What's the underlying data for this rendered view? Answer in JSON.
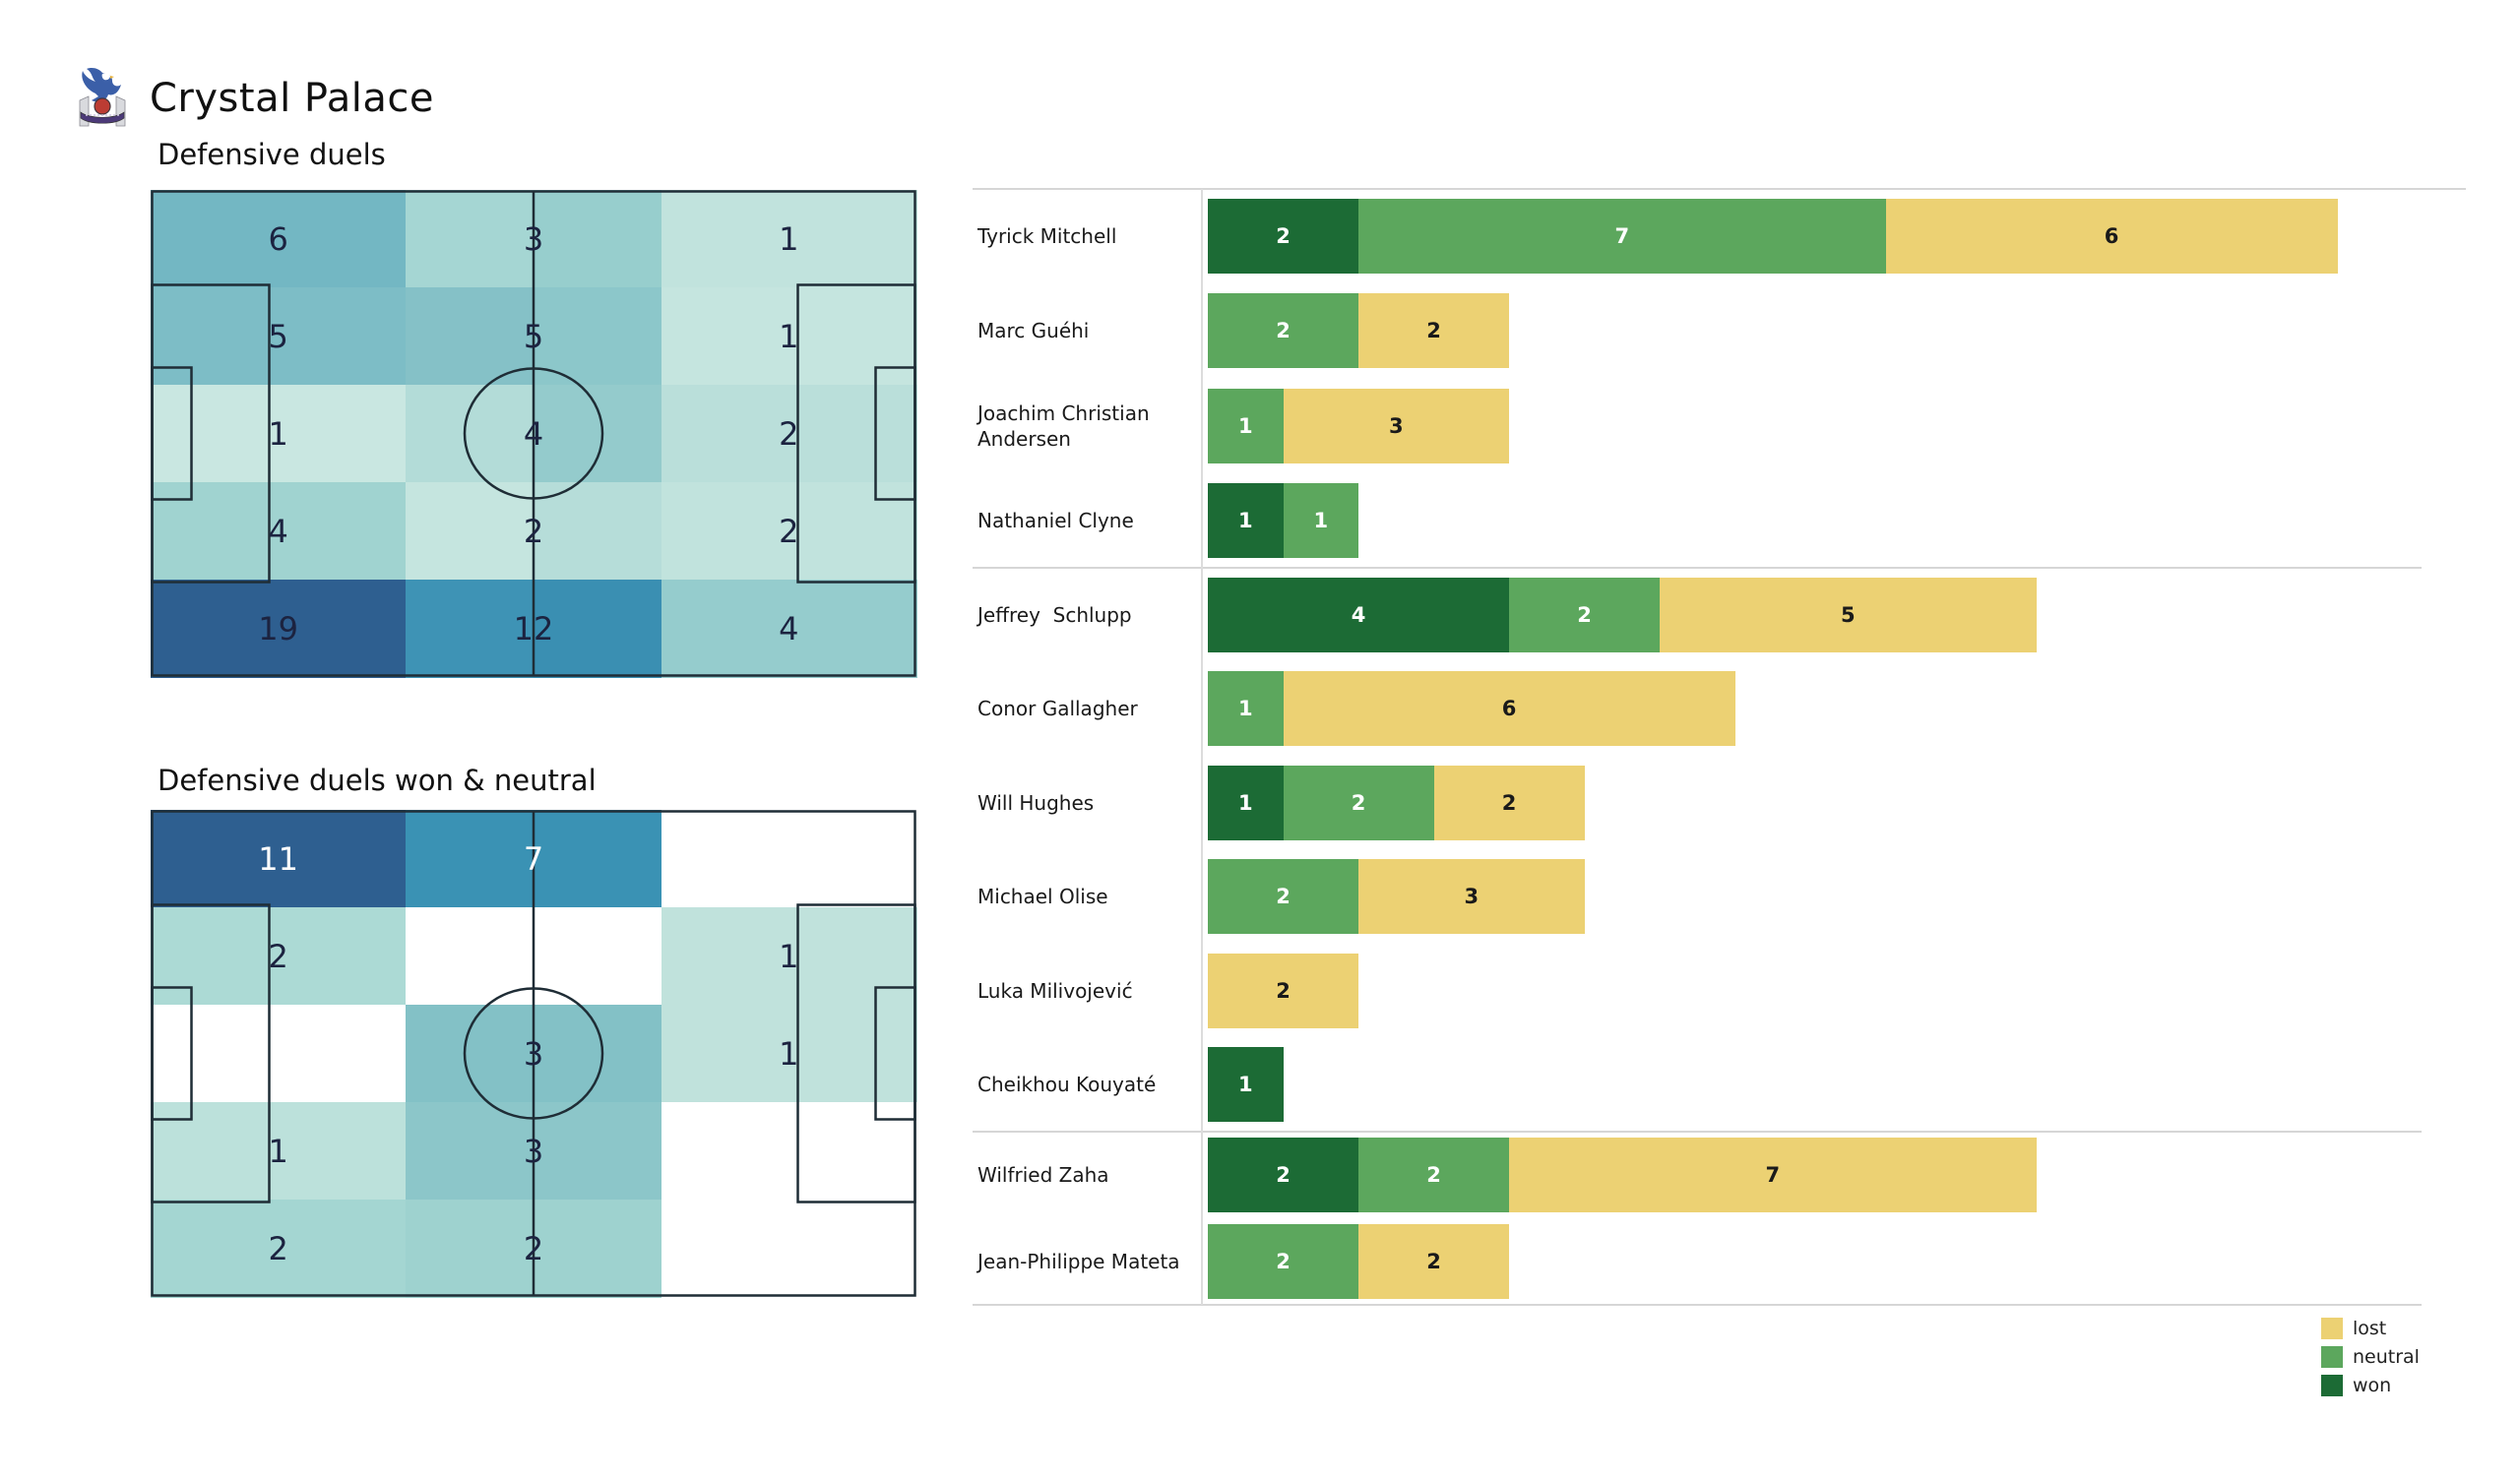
{
  "header": {
    "club_name": "Crystal Palace"
  },
  "colors": {
    "won": "#1c6b35",
    "neutral": "#5ca75d",
    "lost": "#ecd173",
    "segment_text": {
      "won": "#ffffff",
      "neutral": "#ffffff",
      "lost": "#1a1a1a"
    },
    "pitch_label_dark": "#1c2340",
    "pitch_label_light": "#ffffff"
  },
  "pitch1": {
    "title": "Defensive duels",
    "values": [
      [
        "6",
        "3",
        "1"
      ],
      [
        "5",
        "5",
        "1"
      ],
      [
        "1",
        "4",
        "2"
      ],
      [
        "4",
        "2",
        "2"
      ],
      [
        "19",
        "12",
        "4"
      ]
    ],
    "value_styles": [
      [
        "dark",
        "dark",
        "dark"
      ],
      [
        "dark",
        "dark",
        "dark"
      ],
      [
        "dark",
        "dark",
        "dark"
      ],
      [
        "dark",
        "dark",
        "dark"
      ],
      [
        "dark",
        "dark",
        "dark"
      ]
    ],
    "cell_colors": [
      [
        "#73b7c3",
        "#73b7c3",
        "#a5d6d3",
        "#97cecd",
        "#c1e3dd",
        "#c1e3dd"
      ],
      [
        "#7dbdc6",
        "#7dbdc6",
        "#85c1c7",
        "#8cc7ca",
        "#c5e5df",
        "#c5e5df"
      ],
      [
        "#c9e7e1",
        "#c9e7e1",
        "#b3dcd8",
        "#94cbcc",
        "#badfda",
        "#badfda"
      ],
      [
        "#a0d3d0",
        "#a0d3d0",
        "#c5e5df",
        "#b6ddd9",
        "#c1e3dd",
        "#c1e3dd"
      ],
      [
        "#2e5f90",
        "#2e5f90",
        "#3e93b5",
        "#3a8fb2",
        "#95cccd",
        "#95cccd"
      ]
    ]
  },
  "pitch2": {
    "title": "Defensive duels won & neutral",
    "values": [
      [
        "11",
        "7",
        ""
      ],
      [
        "2",
        "",
        "1"
      ],
      [
        "",
        "3",
        "1"
      ],
      [
        "1",
        "3",
        ""
      ],
      [
        "2",
        "2",
        ""
      ]
    ],
    "value_styles": [
      [
        "light",
        "light",
        ""
      ],
      [
        "dark",
        "",
        "dark"
      ],
      [
        "",
        "dark",
        "dark"
      ],
      [
        "dark",
        "dark",
        ""
      ],
      [
        "dark",
        "dark",
        ""
      ]
    ],
    "cell_colors": [
      [
        "#2e5f90",
        "#2e5f90",
        "#3a92b4",
        "#3a92b4",
        "#ffffff",
        "#ffffff"
      ],
      [
        "#acdad5",
        "#acdad5",
        "#ffffff",
        "#ffffff",
        "#c0e2dc",
        "#c0e2dc"
      ],
      [
        "#ffffff",
        "#ffffff",
        "#83c1c6",
        "#83c1c6",
        "#c0e2dc",
        "#c0e2dc"
      ],
      [
        "#bce1db",
        "#bce1db",
        "#8cc6c9",
        "#8cc6c9",
        "#ffffff",
        "#ffffff"
      ],
      [
        "#a4d6d2",
        "#a4d6d2",
        "#9ed2cf",
        "#9ed2cf",
        "#ffffff",
        "#ffffff"
      ]
    ]
  },
  "duel_chart": {
    "groups": [
      {
        "players": [
          {
            "name": "Tyrick Mitchell",
            "segments": [
              {
                "key": "won",
                "value": 2
              },
              {
                "key": "neutral",
                "value": 7
              },
              {
                "key": "lost",
                "value": 6
              }
            ]
          },
          {
            "name": "Marc Guéhi",
            "segments": [
              {
                "key": "neutral",
                "value": 2
              },
              {
                "key": "lost",
                "value": 2
              }
            ]
          },
          {
            "name": "Joachim Christian Andersen",
            "segments": [
              {
                "key": "neutral",
                "value": 1
              },
              {
                "key": "lost",
                "value": 3
              }
            ]
          },
          {
            "name": "Nathaniel Clyne",
            "segments": [
              {
                "key": "won",
                "value": 1
              },
              {
                "key": "neutral",
                "value": 1
              }
            ]
          }
        ]
      },
      {
        "players": [
          {
            "name": "Jeffrey  Schlupp",
            "segments": [
              {
                "key": "won",
                "value": 4
              },
              {
                "key": "neutral",
                "value": 2
              },
              {
                "key": "lost",
                "value": 5
              }
            ]
          },
          {
            "name": "Conor Gallagher",
            "segments": [
              {
                "key": "neutral",
                "value": 1
              },
              {
                "key": "lost",
                "value": 6
              }
            ]
          },
          {
            "name": "Will Hughes",
            "segments": [
              {
                "key": "won",
                "value": 1
              },
              {
                "key": "neutral",
                "value": 2
              },
              {
                "key": "lost",
                "value": 2
              }
            ]
          },
          {
            "name": "Michael Olise",
            "segments": [
              {
                "key": "neutral",
                "value": 2
              },
              {
                "key": "lost",
                "value": 3
              }
            ]
          },
          {
            "name": "Luka Milivojević",
            "segments": [
              {
                "key": "lost",
                "value": 2
              }
            ]
          },
          {
            "name": "Cheikhou Kouyaté",
            "segments": [
              {
                "key": "won",
                "value": 1
              }
            ]
          }
        ]
      },
      {
        "players": [
          {
            "name": "Wilfried Zaha",
            "segments": [
              {
                "key": "won",
                "value": 2
              },
              {
                "key": "neutral",
                "value": 2
              },
              {
                "key": "lost",
                "value": 7
              }
            ]
          },
          {
            "name": "Jean-Philippe Mateta",
            "segments": [
              {
                "key": "neutral",
                "value": 2
              },
              {
                "key": "lost",
                "value": 2
              }
            ]
          }
        ]
      }
    ],
    "legend": [
      {
        "key": "lost",
        "label": "lost"
      },
      {
        "key": "neutral",
        "label": "neutral"
      },
      {
        "key": "won",
        "label": "won"
      }
    ]
  },
  "chart_data": [
    {
      "type": "heatmap",
      "title": "Defensive duels",
      "layout": "football pitch divided into 3 columns (left-to-right) x 5 rows (top-to-bottom)",
      "values": [
        [
          6,
          3,
          1
        ],
        [
          5,
          5,
          1
        ],
        [
          1,
          4,
          2
        ],
        [
          4,
          2,
          2
        ],
        [
          19,
          12,
          4
        ]
      ],
      "colormap": "light teal (low) to dark blue (high)"
    },
    {
      "type": "heatmap",
      "title": "Defensive duels won & neutral",
      "layout": "football pitch divided into 3 columns (left-to-right) x 5 rows (top-to-bottom); empty zones white",
      "values": [
        [
          11,
          7,
          null
        ],
        [
          2,
          null,
          1
        ],
        [
          null,
          3,
          1
        ],
        [
          1,
          3,
          null
        ],
        [
          2,
          2,
          null
        ]
      ],
      "colormap": "light teal (low) to dark blue (high)"
    },
    {
      "type": "bar",
      "orientation": "horizontal",
      "stacked": true,
      "title": "Defensive duels per player (won / neutral / lost)",
      "categories": [
        "Tyrick Mitchell",
        "Marc Guéhi",
        "Joachim Christian Andersen",
        "Nathaniel Clyne",
        "Jeffrey  Schlupp",
        "Conor Gallagher",
        "Will Hughes",
        "Michael Olise",
        "Luka Milivojević",
        "Cheikhou Kouyaté",
        "Wilfried Zaha",
        "Jean-Philippe Mateta"
      ],
      "series": [
        {
          "name": "won",
          "color": "#1c6b35",
          "values": [
            2,
            0,
            0,
            1,
            4,
            0,
            1,
            0,
            0,
            1,
            2,
            0
          ]
        },
        {
          "name": "neutral",
          "color": "#5ca75d",
          "values": [
            7,
            2,
            1,
            1,
            2,
            1,
            2,
            2,
            0,
            0,
            2,
            2
          ]
        },
        {
          "name": "lost",
          "color": "#ecd173",
          "values": [
            6,
            2,
            3,
            0,
            5,
            6,
            2,
            3,
            2,
            0,
            7,
            2
          ]
        }
      ],
      "group_separators_after": [
        "Nathaniel Clyne",
        "Cheikhou Kouyaté",
        "Jean-Philippe Mateta"
      ],
      "legend_position": "bottom-right",
      "legend_order": [
        "lost",
        "neutral",
        "won"
      ]
    }
  ]
}
